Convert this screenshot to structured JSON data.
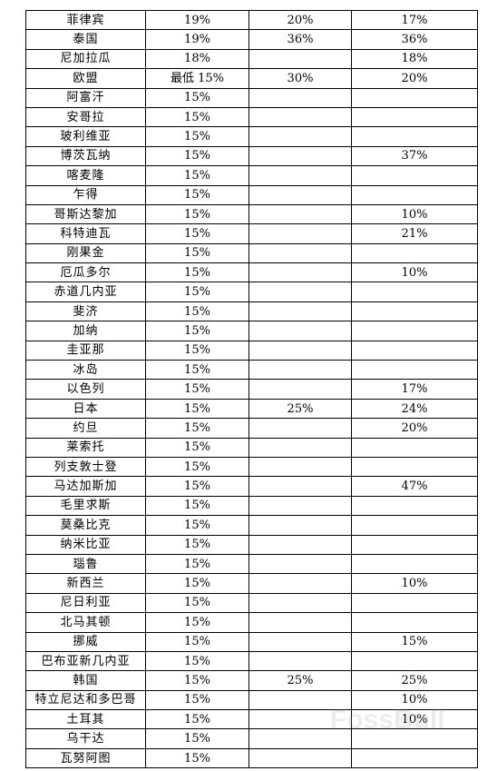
{
  "rows": [
    [
      "菲律宾",
      "19%",
      "20%",
      "17%"
    ],
    [
      "泰国",
      "19%",
      "36%",
      "36%"
    ],
    [
      "尼加拉瓜",
      "18%",
      "",
      "18%"
    ],
    [
      "欧盟",
      "最低 15%",
      "30%",
      "20%"
    ],
    [
      "阿富汗",
      "15%",
      "",
      ""
    ],
    [
      "安哥拉",
      "15%",
      "",
      ""
    ],
    [
      "玻利维亚",
      "15%",
      "",
      ""
    ],
    [
      "博茨瓦纳",
      "15%",
      "",
      "37%"
    ],
    [
      "喀麦隆",
      "15%",
      "",
      ""
    ],
    [
      "乍得",
      "15%",
      "",
      ""
    ],
    [
      "哥斯达黎加",
      "15%",
      "",
      "10%"
    ],
    [
      "科特迪瓦",
      "15%",
      "",
      "21%"
    ],
    [
      "刚果金",
      "15%",
      "",
      ""
    ],
    [
      "厄瓜多尔",
      "15%",
      "",
      "10%"
    ],
    [
      "赤道几内亚",
      "15%",
      "",
      ""
    ],
    [
      "斐济",
      "15%",
      "",
      ""
    ],
    [
      "加纳",
      "15%",
      "",
      ""
    ],
    [
      "圭亚那",
      "15%",
      "",
      ""
    ],
    [
      "冰岛",
      "15%",
      "",
      ""
    ],
    [
      "以色列",
      "15%",
      "",
      "17%"
    ],
    [
      "日本",
      "15%",
      "25%",
      "24%"
    ],
    [
      "约旦",
      "15%",
      "",
      "20%"
    ],
    [
      "莱索托",
      "15%",
      "",
      ""
    ],
    [
      "列支敦士登",
      "15%",
      "",
      ""
    ],
    [
      "马达加斯加",
      "15%",
      "",
      "47%"
    ],
    [
      "毛里求斯",
      "15%",
      "",
      ""
    ],
    [
      "莫桑比克",
      "15%",
      "",
      ""
    ],
    [
      "纳米比亚",
      "15%",
      "",
      ""
    ],
    [
      "瑙鲁",
      "15%",
      "",
      ""
    ],
    [
      "新西兰",
      "15%",
      "",
      "10%"
    ],
    [
      "尼日利亚",
      "15%",
      "",
      ""
    ],
    [
      "北马其顿",
      "15%",
      "",
      ""
    ],
    [
      "挪威",
      "15%",
      "",
      "15%"
    ],
    [
      "巴布亚新几内亚",
      "15%",
      "",
      ""
    ],
    [
      "韩国",
      "15%",
      "25%",
      "25%"
    ],
    [
      "特立尼达和多巴哥",
      "15%",
      "",
      "10%"
    ],
    [
      "土耳其",
      "15%",
      "",
      "10%"
    ],
    [
      "乌干达",
      "15%",
      "",
      ""
    ],
    [
      "瓦努阿图",
      "15%",
      "",
      ""
    ]
  ],
  "watermark": {
    "text": "FossBull",
    "color": "#9a9a9a"
  }
}
